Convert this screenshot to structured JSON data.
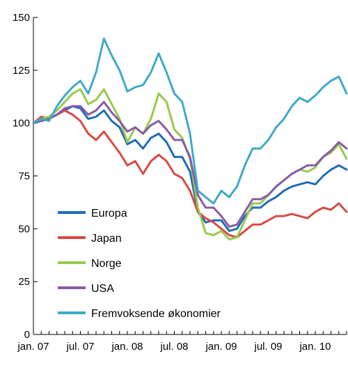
{
  "chart_data": {
    "type": "line",
    "title": "",
    "xlabel": "",
    "ylabel": "",
    "ylim": [
      0,
      150
    ],
    "yticks": [
      0,
      25,
      50,
      75,
      100,
      125,
      150
    ],
    "xticks": [
      "jan. 07",
      "jul. 07",
      "jan. 08",
      "jul. 08",
      "jan. 09",
      "jul. 09",
      "jan. 10"
    ],
    "x": [
      "jan. 07",
      "feb. 07",
      "mar. 07",
      "apr. 07",
      "mai 07",
      "jun. 07",
      "jul. 07",
      "aug. 07",
      "sep. 07",
      "okt. 07",
      "nov. 07",
      "des. 07",
      "jan. 08",
      "feb. 08",
      "mar. 08",
      "apr. 08",
      "mai 08",
      "jun. 08",
      "jul. 08",
      "aug. 08",
      "sep. 08",
      "okt. 08",
      "nov. 08",
      "des. 08",
      "jan. 09",
      "feb. 09",
      "mar. 09",
      "apr. 09",
      "mai 09",
      "jun. 09",
      "jul. 09",
      "aug. 09",
      "sep. 09",
      "okt. 09",
      "nov. 09",
      "des. 09",
      "jan. 10",
      "feb. 10",
      "mar. 10",
      "apr. 10",
      "mai 10"
    ],
    "legend_position": "bottom-left",
    "grid": false,
    "series": [
      {
        "name": "Europa",
        "color": "#1f6cb5",
        "values": [
          100,
          101,
          102,
          104,
          106,
          108,
          107,
          102,
          103,
          106,
          101,
          98,
          90,
          92,
          88,
          93,
          95,
          91,
          84,
          84,
          77,
          58,
          53,
          54,
          54,
          49,
          50,
          56,
          60,
          60,
          63,
          65,
          68,
          70,
          71,
          72,
          71,
          75,
          78,
          80,
          78
        ]
      },
      {
        "name": "Japan",
        "color": "#d84a43",
        "values": [
          100,
          103,
          102,
          104,
          106,
          104,
          101,
          95,
          92,
          96,
          91,
          86,
          80,
          82,
          76,
          82,
          85,
          82,
          76,
          74,
          68,
          58,
          55,
          53,
          50,
          47,
          46,
          49,
          52,
          52,
          54,
          56,
          56,
          57,
          56,
          55,
          58,
          60,
          59,
          62,
          58
        ]
      },
      {
        "name": "Norge",
        "color": "#98c94b",
        "values": [
          100,
          102,
          103,
          106,
          110,
          114,
          116,
          109,
          111,
          116,
          109,
          102,
          91,
          98,
          95,
          102,
          114,
          110,
          97,
          93,
          83,
          60,
          48,
          47,
          49,
          45,
          46,
          54,
          62,
          62,
          66,
          70,
          73,
          76,
          78,
          77,
          79,
          84,
          86,
          90,
          83
        ]
      },
      {
        "name": "USA",
        "color": "#8a5aa8",
        "values": [
          100,
          101,
          102,
          104,
          107,
          108,
          108,
          104,
          106,
          110,
          105,
          101,
          96,
          98,
          95,
          99,
          101,
          97,
          92,
          92,
          84,
          66,
          60,
          60,
          56,
          51,
          52,
          58,
          64,
          64,
          66,
          70,
          73,
          76,
          78,
          80,
          80,
          84,
          87,
          91,
          88
        ]
      },
      {
        "name": "Fremvoksende økonomier",
        "color": "#3fa9c9",
        "values": [
          100,
          102,
          101,
          108,
          113,
          117,
          120,
          114,
          124,
          140,
          132,
          125,
          115,
          117,
          118,
          124,
          133,
          124,
          114,
          110,
          95,
          68,
          65,
          62,
          68,
          65,
          70,
          80,
          88,
          88,
          92,
          98,
          102,
          108,
          112,
          110,
          113,
          117,
          120,
          122,
          114
        ]
      }
    ]
  }
}
